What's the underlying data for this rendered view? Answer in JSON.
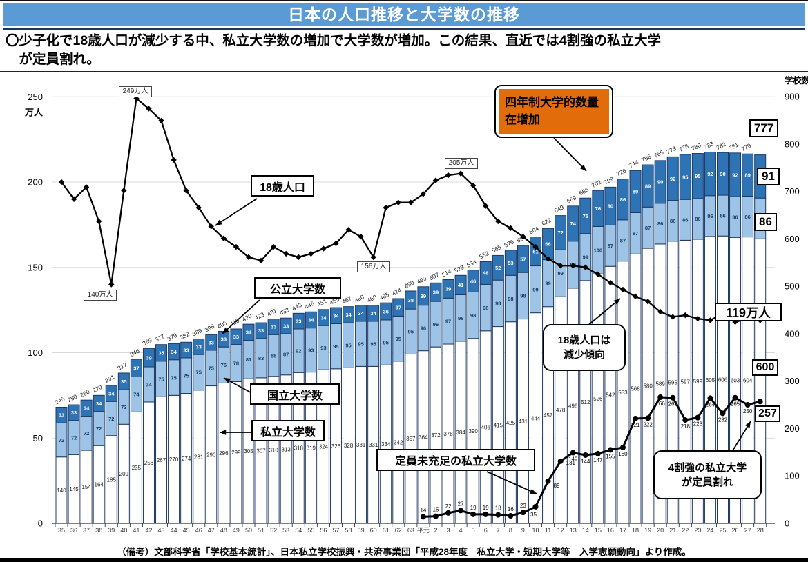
{
  "title": "日本の人口推移と大学数の推移",
  "subtitle": "〇少子化で18歳人口が減少する中、私立大学数の増加で大学数が増加。この結果、直近では4割強の私立大学\n　が定員割れ。",
  "footer": "（備考）文部科学省「学校基本統計」、日本私立学校振興・共済事業団「平成28年度　私立大学・短期大学等　入学志願動向」より作成。",
  "colors": {
    "title_bar": "#5B9BD5",
    "title_underline": "#17375E",
    "bar_private": "#FFFFFF",
    "bar_national": "#9DC3E6",
    "bar_public": "#2E74B5",
    "bar_border": "#1F3864",
    "line": "#000000",
    "gridline": "#D9D9D9",
    "orange_callout": "#E36C0A"
  },
  "annotations": {
    "peak_249": "249万人",
    "dip_140": "140万人",
    "peak_205": "205万人",
    "dip_156": "156万人",
    "end_119": "119万人",
    "total_777": "777",
    "public_91": "91",
    "national_86": "86",
    "private_600": "600",
    "under_257": "257",
    "label_line18": "18歳人口",
    "label_public": "公立大学数",
    "label_national": "国立大学数",
    "label_private": "私立大学数",
    "label_under": "定員未充足の私立大学数",
    "callout_decline": "18歳人口は\n減少傾向",
    "callout_shortfall": "4割強の私立大学\nが定員割れ",
    "callout_orange": "四年制大学的数量\n在增加"
  },
  "chart_data": {
    "type": "bar",
    "subtype": "stacked-bars-with-lines",
    "x_categories": [
      "35",
      "36",
      "37",
      "38",
      "39",
      "40",
      "41",
      "42",
      "43",
      "44",
      "45",
      "46",
      "47",
      "48",
      "49",
      "50",
      "51",
      "52",
      "53",
      "54",
      "55",
      "56",
      "57",
      "58",
      "59",
      "60",
      "61",
      "62",
      "63",
      "平元",
      "2",
      "3",
      "4",
      "5",
      "6",
      "7",
      "8",
      "9",
      "10",
      "11",
      "12",
      "13",
      "14",
      "15",
      "16",
      "17",
      "18",
      "19",
      "20",
      "21",
      "22",
      "23",
      "24",
      "25",
      "26",
      "27",
      "28"
    ],
    "axis_left": {
      "title": "万人",
      "ticks": [
        0,
        50,
        100,
        150,
        200,
        250
      ],
      "max": 250
    },
    "axis_right": {
      "title": "学校数",
      "ticks": [
        0,
        100,
        200,
        300,
        400,
        500,
        600,
        700,
        800,
        900
      ],
      "max": 900
    },
    "bar_series": [
      {
        "name": "私立大学数",
        "color": "#FFFFFF",
        "values": [
          140,
          145,
          154,
          164,
          185,
          209,
          235,
          256,
          267,
          270,
          274,
          281,
          290,
          296,
          299,
          305,
          307,
          310,
          313,
          318,
          319,
          324,
          326,
          328,
          331,
          331,
          334,
          342,
          357,
          364,
          372,
          378,
          384,
          390,
          406,
          415,
          425,
          431,
          444,
          457,
          478,
          496,
          512,
          526,
          542,
          553,
          568,
          580,
          589,
          595,
          597,
          599,
          605,
          606,
          603,
          604,
          600
        ]
      },
      {
        "name": "国立大学数",
        "color": "#9DC3E6",
        "values": [
          72,
          72,
          72,
          72,
          72,
          73,
          74,
          74,
          75,
          75,
          75,
          75,
          75,
          76,
          78,
          81,
          83,
          88,
          87,
          92,
          93,
          93,
          95,
          95,
          95,
          95,
          95,
          95,
          95,
          96,
          96,
          97,
          98,
          98,
          98,
          98,
          98,
          98,
          99,
          99,
          99,
          99,
          99,
          100,
          87,
          87,
          87,
          87,
          86,
          86,
          86,
          86,
          86,
          86,
          86,
          86,
          86
        ]
      },
      {
        "name": "公立大学数",
        "color": "#2E74B5",
        "values": [
          33,
          33,
          34,
          34,
          34,
          35,
          37,
          39,
          35,
          34,
          33,
          33,
          33,
          33,
          33,
          34,
          33,
          33,
          33,
          33,
          34,
          34,
          34,
          34,
          34,
          34,
          36,
          37,
          38,
          39,
          39,
          39,
          41,
          46,
          48,
          52,
          53,
          57,
          61,
          66,
          72,
          74,
          75,
          76,
          80,
          86,
          89,
          89,
          90,
          92,
          95,
          95,
          92,
          90,
          92,
          89,
          91
        ]
      }
    ],
    "bar_totals": [
      245,
      250,
      260,
      270,
      291,
      317,
      346,
      369,
      377,
      379,
      382,
      389,
      398,
      405,
      410,
      420,
      423,
      431,
      433,
      443,
      446,
      451,
      455,
      457,
      460,
      460,
      465,
      474,
      490,
      499,
      507,
      514,
      523,
      534,
      552,
      565,
      576,
      586,
      604,
      622,
      649,
      669,
      686,
      702,
      709,
      726,
      744,
      756,
      765,
      773,
      778,
      780,
      783,
      782,
      781,
      779,
      777
    ],
    "line_series": [
      {
        "name": "18歳人口",
        "axis": "left",
        "marker": "diamond",
        "start_index": 0,
        "values": [
          200,
          190,
          197,
          177,
          140,
          195,
          249,
          243,
          236,
          213,
          195,
          185,
          174,
          167,
          162,
          156,
          154,
          162,
          158,
          156,
          158,
          161,
          164,
          172,
          168,
          156,
          185,
          188,
          188,
          193,
          201,
          204,
          205,
          198,
          186,
          177,
          173,
          168,
          162,
          155,
          151,
          151,
          150,
          146,
          141,
          137,
          133,
          130,
          124,
          121,
          122,
          120,
          119,
          123,
          118,
          120,
          119
        ]
      },
      {
        "name": "定員未充足の私立大学数",
        "axis": "right",
        "marker": "circle",
        "start_index": 29,
        "values": [
          14,
          15,
          22,
          27,
          19,
          19,
          18,
          16,
          23,
          35,
          89,
          131,
          149,
          144,
          147,
          155,
          160,
          221,
          222,
          266,
          265,
          218,
          223,
          264,
          232,
          265,
          250,
          257
        ]
      }
    ]
  }
}
